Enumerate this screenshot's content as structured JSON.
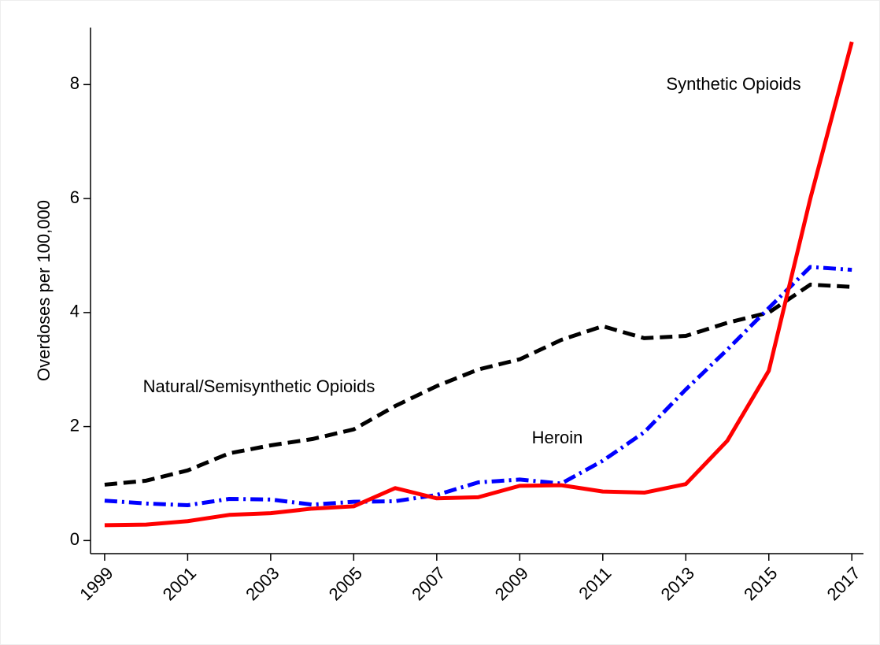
{
  "chart_data": {
    "type": "line",
    "y_label": "Overdoses per 100,000",
    "x": [
      1999,
      2000,
      2001,
      2002,
      2003,
      2004,
      2005,
      2006,
      2007,
      2008,
      2009,
      2010,
      2011,
      2012,
      2013,
      2014,
      2015,
      2016,
      2017
    ],
    "series": [
      {
        "name": "Natural/Semisynthetic Opioids",
        "color": "#000000",
        "dash": "dash",
        "values": [
          0.98,
          1.05,
          1.23,
          1.53,
          1.67,
          1.78,
          1.95,
          2.36,
          2.71,
          3.0,
          3.18,
          3.52,
          3.76,
          3.55,
          3.59,
          3.82,
          4.0,
          4.49,
          4.45
        ]
      },
      {
        "name": "Heroin",
        "color": "#0000ff",
        "dash": "dashdot",
        "values": [
          0.7,
          0.65,
          0.62,
          0.73,
          0.72,
          0.63,
          0.68,
          0.69,
          0.8,
          1.02,
          1.07,
          1.0,
          1.4,
          1.9,
          2.65,
          3.35,
          4.08,
          4.8,
          4.75
        ]
      },
      {
        "name": "Synthetic Opioids",
        "color": "#ff0000",
        "dash": "solid",
        "values": [
          0.27,
          0.28,
          0.34,
          0.45,
          0.48,
          0.56,
          0.6,
          0.92,
          0.74,
          0.76,
          0.96,
          0.97,
          0.86,
          0.84,
          0.99,
          1.75,
          2.98,
          6.0,
          8.75
        ]
      }
    ],
    "xlim": [
      1998.66,
      2017.28
    ],
    "xticks": [
      1999,
      2001,
      2003,
      2005,
      2007,
      2009,
      2011,
      2013,
      2015,
      2017
    ],
    "ylim": [
      -0.23,
      9.0
    ],
    "yticks": [
      0,
      2,
      4,
      6,
      8
    ],
    "grid": false
  }
}
